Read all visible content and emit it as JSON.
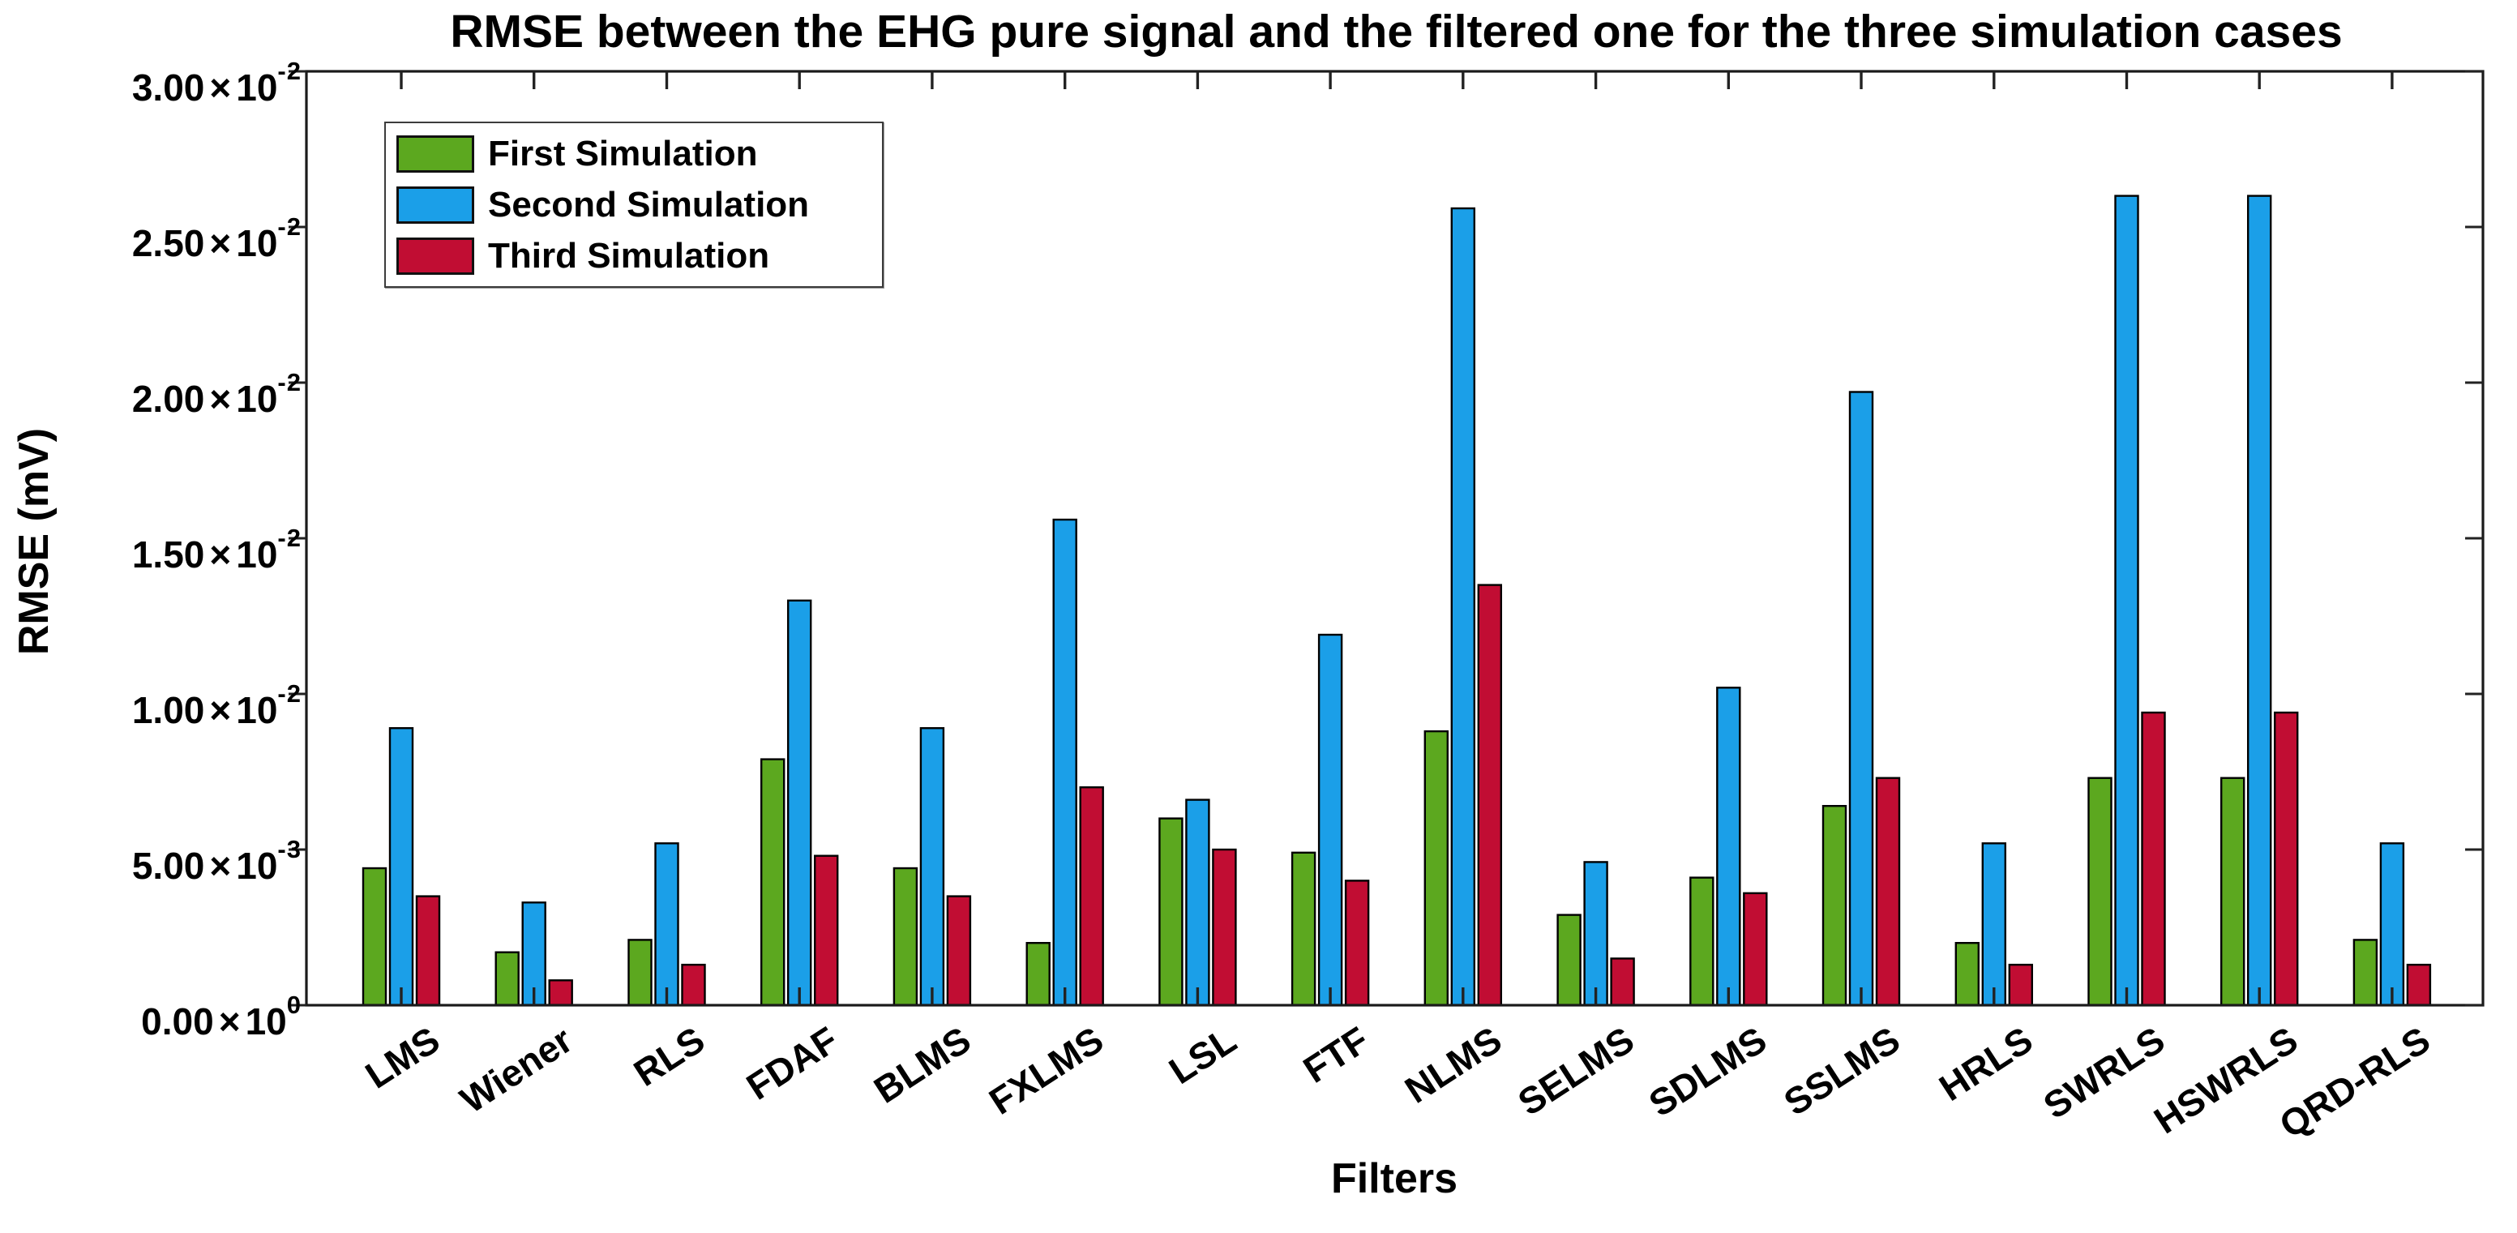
{
  "chart_data": {
    "type": "bar",
    "title": "RMSE between the EHG pure signal and the filtered one for the three simulation cases",
    "xlabel": "Filters",
    "ylabel": "RMSE (mV)",
    "categories": [
      "LMS",
      "Wiener",
      "RLS",
      "FDAF",
      "BLMS",
      "FXLMS",
      "LSL",
      "FTF",
      "NLMS",
      "SELMS",
      "SDLMS",
      "SSLMS",
      "HRLS",
      "SWRLS",
      "HSWRLS",
      "QRD-RLS"
    ],
    "series": [
      {
        "name": "First Simulation",
        "color": "#5CA81F",
        "values": [
          0.0044,
          0.0017,
          0.0021,
          0.0079,
          0.0044,
          0.002,
          0.006,
          0.0049,
          0.0088,
          0.0029,
          0.0041,
          0.0064,
          0.002,
          0.0073,
          0.0073,
          0.0021
        ]
      },
      {
        "name": "Second Simulation",
        "color": "#1B9FE8",
        "values": [
          0.0089,
          0.0033,
          0.0052,
          0.013,
          0.0089,
          0.0156,
          0.0066,
          0.0119,
          0.0256,
          0.0046,
          0.0102,
          0.0197,
          0.0052,
          0.026,
          0.026,
          0.0052
        ]
      },
      {
        "name": "Third Simulation",
        "color": "#C10D33",
        "values": [
          0.0035,
          0.0008,
          0.0013,
          0.0048,
          0.0035,
          0.007,
          0.005,
          0.004,
          0.0135,
          0.0015,
          0.0036,
          0.0073,
          0.0013,
          0.0094,
          0.0094,
          0.0013
        ]
      }
    ],
    "ylim": [
      0,
      0.03
    ],
    "yticks": [
      {
        "value": 0.0,
        "mantissa": "0.00",
        "exponent": "0"
      },
      {
        "value": 0.005,
        "mantissa": "5.00",
        "exponent": "-3"
      },
      {
        "value": 0.01,
        "mantissa": "1.00",
        "exponent": "-2"
      },
      {
        "value": 0.015,
        "mantissa": "1.50",
        "exponent": "-2"
      },
      {
        "value": 0.02,
        "mantissa": "2.00",
        "exponent": "-2"
      },
      {
        "value": 0.025,
        "mantissa": "2.50",
        "exponent": "-2"
      },
      {
        "value": 0.03,
        "mantissa": "3.00",
        "exponent": "-2"
      }
    ],
    "legend_position": "top-left",
    "grid": false
  },
  "style": {
    "axis_color": "#1a1a1a",
    "tick_color": "#222222",
    "bar_edge_color": "#000000",
    "text_color": "#000000",
    "background": "#ffffff"
  }
}
